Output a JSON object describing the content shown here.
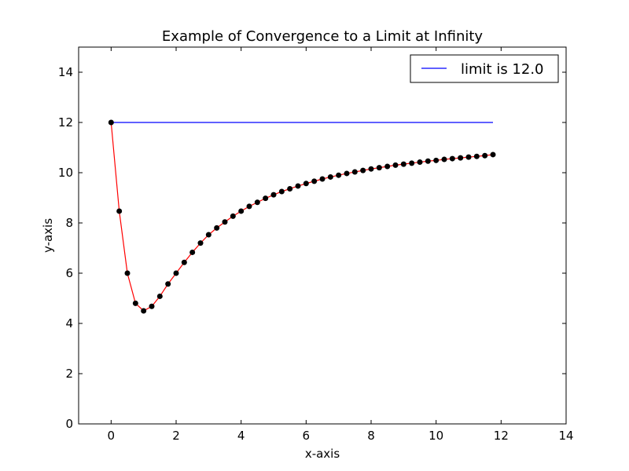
{
  "chart_data": {
    "type": "line",
    "title": "Example of Convergence to a Limit at Infinity",
    "xlabel": "x-axis",
    "ylabel": "y-axis",
    "xlim": [
      -1,
      14
    ],
    "ylim": [
      0,
      15
    ],
    "xticks": [
      0,
      2,
      4,
      6,
      8,
      10,
      12,
      14
    ],
    "yticks": [
      0,
      2,
      4,
      6,
      8,
      10,
      12,
      14
    ],
    "grid": false,
    "legend": {
      "position": "top-right",
      "entries": [
        "limit is 12.0"
      ]
    },
    "colors": {
      "curve": "#ff0000",
      "limit": "#0000ff",
      "points": "#000000"
    },
    "series": [
      {
        "name": "limit is 12.0",
        "kind": "line",
        "x": [
          0,
          11.75
        ],
        "y": [
          12.0,
          12.0
        ]
      },
      {
        "kind": "line+markers",
        "x": [
          0,
          0.25,
          0.5,
          0.75,
          1.0,
          1.25,
          1.5,
          1.75,
          2.0,
          2.25,
          2.5,
          2.75,
          3.0,
          3.25,
          3.5,
          3.75,
          4.0,
          4.25,
          4.5,
          4.75,
          5.0,
          5.25,
          5.5,
          5.75,
          6.0,
          6.25,
          6.5,
          6.75,
          7.0,
          7.25,
          7.5,
          7.75,
          8.0,
          8.25,
          8.5,
          8.75,
          9.0,
          9.25,
          9.5,
          9.75,
          10.0,
          10.25,
          10.5,
          10.75,
          11.0,
          11.25,
          11.5,
          11.75
        ],
        "y": [
          12.0,
          8.47,
          6.0,
          4.8,
          4.5,
          4.68,
          5.08,
          5.57,
          6.0,
          6.43,
          6.83,
          7.2,
          7.53,
          7.8,
          8.04,
          8.27,
          8.47,
          8.66,
          8.82,
          8.98,
          9.12,
          9.25,
          9.36,
          9.47,
          9.57,
          9.66,
          9.75,
          9.83,
          9.9,
          9.97,
          10.03,
          10.09,
          10.15,
          10.2,
          10.25,
          10.3,
          10.34,
          10.38,
          10.42,
          10.46,
          10.49,
          10.53,
          10.56,
          10.59,
          10.62,
          10.65,
          10.68,
          10.72
        ]
      }
    ]
  }
}
